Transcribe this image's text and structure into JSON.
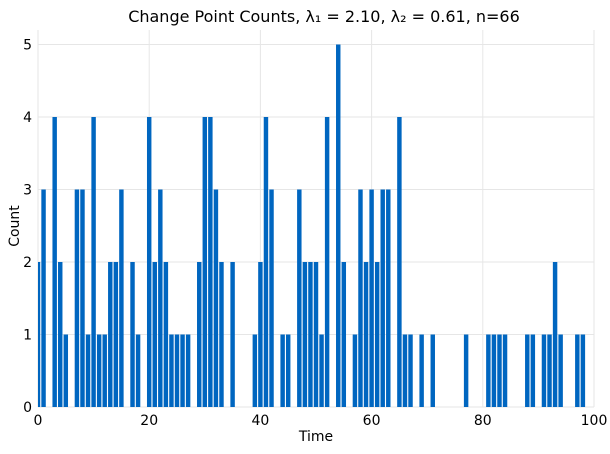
{
  "chart_data": {
    "type": "bar",
    "title": "Change Point Counts, λ₁ = 2.10, λ₂ = 0.61, n=66",
    "xlabel": "Time",
    "ylabel": "Count",
    "xlim": [
      0,
      100
    ],
    "ylim": [
      0,
      5.2
    ],
    "x_ticks": [
      0,
      20,
      40,
      60,
      80,
      100
    ],
    "y_ticks": [
      0,
      1,
      2,
      3,
      4,
      5
    ],
    "grid": true,
    "bar_color": "#0066c0",
    "x": [
      0,
      1,
      3,
      4,
      5,
      7,
      8,
      9,
      10,
      11,
      12,
      13,
      14,
      15,
      17,
      18,
      20,
      21,
      22,
      23,
      24,
      25,
      26,
      27,
      29,
      30,
      31,
      32,
      33,
      35,
      39,
      40,
      41,
      42,
      44,
      45,
      47,
      48,
      49,
      50,
      51,
      52,
      54,
      55,
      57,
      58,
      59,
      60,
      61,
      62,
      63,
      65,
      66,
      67,
      69,
      71,
      77,
      81,
      82,
      83,
      84,
      88,
      89,
      91,
      92,
      93,
      94,
      97,
      98
    ],
    "values": [
      2,
      3,
      4,
      2,
      1,
      3,
      3,
      1,
      4,
      1,
      1,
      2,
      2,
      3,
      2,
      1,
      4,
      2,
      3,
      2,
      1,
      1,
      1,
      1,
      2,
      4,
      4,
      3,
      2,
      2,
      1,
      2,
      4,
      3,
      1,
      1,
      3,
      2,
      2,
      2,
      1,
      4,
      5,
      2,
      1,
      3,
      2,
      3,
      2,
      3,
      3,
      4,
      1,
      1,
      1,
      1,
      1,
      1,
      1,
      1,
      1,
      1,
      1,
      1,
      1,
      2,
      1,
      1,
      1
    ]
  }
}
